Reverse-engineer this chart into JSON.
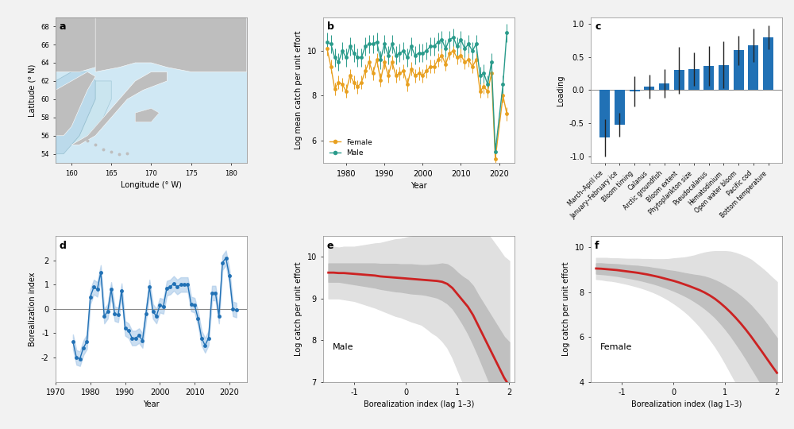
{
  "panel_b": {
    "years_female": [
      1975,
      1976,
      1977,
      1978,
      1979,
      1980,
      1981,
      1982,
      1983,
      1984,
      1985,
      1986,
      1987,
      1988,
      1989,
      1990,
      1991,
      1992,
      1993,
      1994,
      1995,
      1996,
      1997,
      1998,
      1999,
      2000,
      2001,
      2002,
      2003,
      2004,
      2005,
      2006,
      2007,
      2008,
      2009,
      2010,
      2011,
      2012,
      2013,
      2014,
      2015,
      2016,
      2017,
      2018,
      2019,
      2021,
      2022
    ],
    "values_female": [
      10.1,
      9.3,
      8.3,
      8.6,
      8.5,
      8.2,
      8.9,
      8.6,
      8.4,
      8.6,
      9.1,
      9.5,
      9.0,
      9.6,
      8.7,
      9.5,
      8.9,
      9.5,
      8.9,
      9.0,
      9.1,
      8.5,
      9.2,
      8.9,
      9.0,
      8.9,
      9.1,
      9.3,
      9.3,
      9.6,
      9.8,
      9.4,
      9.9,
      10.0,
      9.7,
      9.8,
      9.5,
      9.6,
      9.3,
      9.6,
      8.2,
      8.4,
      8.2,
      9.0,
      5.2,
      8.0,
      7.2
    ],
    "err_female": [
      0.3,
      0.3,
      0.3,
      0.3,
      0.3,
      0.3,
      0.3,
      0.3,
      0.3,
      0.3,
      0.3,
      0.3,
      0.3,
      0.3,
      0.3,
      0.3,
      0.3,
      0.3,
      0.3,
      0.3,
      0.3,
      0.3,
      0.3,
      0.3,
      0.3,
      0.3,
      0.3,
      0.3,
      0.3,
      0.3,
      0.3,
      0.3,
      0.3,
      0.3,
      0.3,
      0.3,
      0.3,
      0.3,
      0.3,
      0.3,
      0.3,
      0.3,
      0.3,
      0.3,
      0.3,
      0.3,
      0.3
    ],
    "years_male": [
      1975,
      1976,
      1977,
      1978,
      1979,
      1980,
      1981,
      1982,
      1983,
      1984,
      1985,
      1986,
      1987,
      1988,
      1989,
      1990,
      1991,
      1992,
      1993,
      1994,
      1995,
      1996,
      1997,
      1998,
      1999,
      2000,
      2001,
      2002,
      2003,
      2004,
      2005,
      2006,
      2007,
      2008,
      2009,
      2010,
      2011,
      2012,
      2013,
      2014,
      2015,
      2016,
      2017,
      2018,
      2019,
      2021,
      2022
    ],
    "values_male": [
      10.4,
      10.3,
      9.7,
      9.5,
      10.0,
      9.7,
      10.2,
      9.9,
      9.7,
      9.7,
      10.2,
      10.3,
      10.3,
      10.4,
      9.6,
      10.3,
      9.8,
      10.3,
      9.8,
      9.9,
      10.0,
      9.7,
      10.2,
      9.8,
      9.9,
      9.9,
      10.0,
      10.2,
      10.2,
      10.4,
      10.5,
      10.1,
      10.5,
      10.6,
      10.2,
      10.5,
      10.1,
      10.3,
      10.0,
      10.3,
      8.9,
      9.0,
      8.5,
      9.5,
      5.5,
      8.5,
      10.8
    ],
    "err_male": [
      0.4,
      0.4,
      0.4,
      0.4,
      0.4,
      0.4,
      0.4,
      0.4,
      0.4,
      0.4,
      0.4,
      0.4,
      0.4,
      0.4,
      0.4,
      0.4,
      0.4,
      0.4,
      0.4,
      0.4,
      0.4,
      0.4,
      0.4,
      0.4,
      0.4,
      0.4,
      0.4,
      0.4,
      0.4,
      0.4,
      0.4,
      0.4,
      0.4,
      0.4,
      0.4,
      0.4,
      0.4,
      0.4,
      0.4,
      0.4,
      0.4,
      0.4,
      0.4,
      0.4,
      0.4,
      0.4,
      0.4
    ],
    "color_female": "#E8A020",
    "color_male": "#2A9B8B",
    "ylabel": "Log mean catch per unit effort",
    "xlabel": "Year",
    "ylim": [
      5.0,
      11.5
    ],
    "yticks": [
      6,
      8,
      10
    ]
  },
  "panel_c": {
    "categories": [
      "March–April ice",
      "January–February ice",
      "Bloom timing",
      "Calanus",
      "Arctic groundfish",
      "Bloom extent",
      "Phytoplankton size",
      "Pseudocalanus",
      "Hematodinium",
      "Open water bloom",
      "Pacific cod",
      "Bottom temperature"
    ],
    "loadings": [
      -0.72,
      -0.52,
      -0.02,
      0.05,
      0.1,
      0.3,
      0.32,
      0.36,
      0.38,
      0.6,
      0.68,
      0.8
    ],
    "errors": [
      0.28,
      0.18,
      0.23,
      0.18,
      0.22,
      0.35,
      0.25,
      0.3,
      0.35,
      0.22,
      0.25,
      0.18
    ],
    "bar_color": "#2171B5",
    "ylabel": "Loading",
    "ylim": [
      -1.1,
      1.1
    ],
    "yticks": [
      -1.0,
      -0.5,
      0.0,
      0.5,
      1.0
    ]
  },
  "panel_d": {
    "years": [
      1975,
      1976,
      1977,
      1978,
      1979,
      1980,
      1981,
      1982,
      1983,
      1984,
      1985,
      1986,
      1987,
      1988,
      1989,
      1990,
      1991,
      1992,
      1993,
      1994,
      1995,
      1996,
      1997,
      1998,
      1999,
      2000,
      2001,
      2002,
      2003,
      2004,
      2005,
      2006,
      2007,
      2008,
      2009,
      2010,
      2011,
      2012,
      2013,
      2014,
      2015,
      2016,
      2017,
      2018,
      2019,
      2020,
      2021,
      2022
    ],
    "values": [
      -1.35,
      -2.0,
      -2.05,
      -1.6,
      -1.35,
      0.5,
      0.9,
      0.8,
      1.5,
      -0.3,
      -0.1,
      0.8,
      -0.2,
      -0.25,
      0.75,
      -0.8,
      -0.9,
      -1.2,
      -1.2,
      -1.1,
      -1.3,
      -0.2,
      0.9,
      -0.1,
      -0.3,
      0.15,
      0.1,
      0.85,
      0.9,
      1.05,
      0.9,
      1.0,
      1.0,
      1.0,
      0.2,
      0.15,
      -0.4,
      -1.2,
      -1.5,
      -1.2,
      0.65,
      0.65,
      -0.3,
      1.9,
      2.1,
      1.35,
      0.0,
      -0.05
    ],
    "shade_low": [
      -1.65,
      -2.3,
      -2.35,
      -1.9,
      -1.65,
      0.2,
      0.6,
      0.5,
      1.2,
      -0.6,
      -0.4,
      0.5,
      -0.5,
      -0.55,
      0.45,
      -1.1,
      -1.2,
      -1.5,
      -1.5,
      -1.4,
      -1.6,
      -0.5,
      0.6,
      -0.4,
      -0.6,
      -0.15,
      -0.2,
      0.55,
      0.6,
      0.75,
      0.6,
      0.7,
      0.7,
      0.7,
      -0.1,
      -0.15,
      -0.7,
      -1.5,
      -1.8,
      -1.5,
      0.35,
      0.35,
      -0.6,
      1.6,
      1.8,
      1.05,
      -0.3,
      -0.35
    ],
    "shade_high": [
      -1.05,
      -1.7,
      -1.75,
      -1.3,
      -1.05,
      0.8,
      1.2,
      1.1,
      1.8,
      0.0,
      0.2,
      1.1,
      0.1,
      0.05,
      1.05,
      -0.5,
      -0.6,
      -0.9,
      -0.9,
      -0.8,
      -1.0,
      0.1,
      1.2,
      0.2,
      0.0,
      0.45,
      0.4,
      1.15,
      1.2,
      1.35,
      1.2,
      1.3,
      1.3,
      1.3,
      0.5,
      0.45,
      -0.1,
      -0.9,
      -1.2,
      -0.9,
      0.95,
      0.95,
      0.0,
      2.2,
      2.4,
      1.65,
      0.3,
      0.25
    ],
    "color": "#2171B5",
    "shade_color": "#A8C8E8",
    "ylabel": "Borealization index",
    "xlabel": "Year",
    "ylim": [
      -3.0,
      3.0
    ],
    "yticks": [
      -2,
      -1,
      0,
      1,
      2
    ]
  },
  "panel_e": {
    "x": [
      -1.5,
      -1.4,
      -1.3,
      -1.2,
      -1.1,
      -1.0,
      -0.9,
      -0.8,
      -0.7,
      -0.6,
      -0.5,
      -0.4,
      -0.3,
      -0.2,
      -0.1,
      0.0,
      0.1,
      0.2,
      0.3,
      0.4,
      0.5,
      0.6,
      0.7,
      0.8,
      0.9,
      1.0,
      1.1,
      1.2,
      1.3,
      1.4,
      1.5,
      1.6,
      1.7,
      1.8,
      1.9,
      2.0
    ],
    "y_fit": [
      9.62,
      9.62,
      9.61,
      9.61,
      9.6,
      9.59,
      9.58,
      9.57,
      9.56,
      9.55,
      9.53,
      9.52,
      9.51,
      9.5,
      9.49,
      9.48,
      9.47,
      9.46,
      9.45,
      9.44,
      9.43,
      9.42,
      9.4,
      9.35,
      9.25,
      9.1,
      8.95,
      8.8,
      8.6,
      8.35,
      8.1,
      7.85,
      7.6,
      7.35,
      7.1,
      6.9
    ],
    "y_low1": [
      9.4,
      9.4,
      9.4,
      9.38,
      9.36,
      9.34,
      9.32,
      9.3,
      9.28,
      9.26,
      9.23,
      9.21,
      9.19,
      9.17,
      9.16,
      9.14,
      9.12,
      9.11,
      9.1,
      9.08,
      9.05,
      9.02,
      8.96,
      8.88,
      8.76,
      8.58,
      8.38,
      8.16,
      7.9,
      7.62,
      7.32,
      7.02,
      6.72,
      6.42,
      6.12,
      5.85
    ],
    "y_high1": [
      9.84,
      9.84,
      9.84,
      9.84,
      9.84,
      9.84,
      9.84,
      9.84,
      9.84,
      9.84,
      9.83,
      9.83,
      9.83,
      9.83,
      9.82,
      9.82,
      9.82,
      9.81,
      9.8,
      9.8,
      9.81,
      9.82,
      9.84,
      9.82,
      9.74,
      9.62,
      9.52,
      9.44,
      9.3,
      9.08,
      8.88,
      8.68,
      8.48,
      8.28,
      8.08,
      7.95
    ],
    "y_low2": [
      9.0,
      9.0,
      9.0,
      8.98,
      8.96,
      8.94,
      8.9,
      8.86,
      8.82,
      8.78,
      8.73,
      8.68,
      8.63,
      8.58,
      8.55,
      8.5,
      8.45,
      8.41,
      8.37,
      8.28,
      8.18,
      8.1,
      7.98,
      7.82,
      7.58,
      7.28,
      6.98,
      6.65,
      6.3,
      5.94,
      5.55,
      5.18,
      4.85,
      4.52,
      4.2,
      3.9
    ],
    "y_high2": [
      10.24,
      10.24,
      10.22,
      10.24,
      10.24,
      10.24,
      10.26,
      10.28,
      10.3,
      10.32,
      10.33,
      10.36,
      10.39,
      10.42,
      10.43,
      10.46,
      10.49,
      10.51,
      10.53,
      10.6,
      10.68,
      10.74,
      10.82,
      10.88,
      10.92,
      10.92,
      10.92,
      10.95,
      10.9,
      10.76,
      10.65,
      10.52,
      10.35,
      10.18,
      10.0,
      9.9
    ],
    "line_color": "#CC2222",
    "shade1_color": "#C0C0C0",
    "shade2_color": "#E0E0E0",
    "label": "Male",
    "ylabel": "Log catch per unit effort",
    "xlabel": "Borealization index (lag 1–3)",
    "ylim": [
      7.0,
      10.5
    ],
    "yticks": [
      7,
      8,
      9,
      10
    ]
  },
  "panel_f": {
    "x": [
      -1.5,
      -1.4,
      -1.3,
      -1.2,
      -1.1,
      -1.0,
      -0.9,
      -0.8,
      -0.7,
      -0.6,
      -0.5,
      -0.4,
      -0.3,
      -0.2,
      -0.1,
      0.0,
      0.1,
      0.2,
      0.3,
      0.4,
      0.5,
      0.6,
      0.7,
      0.8,
      0.9,
      1.0,
      1.1,
      1.2,
      1.3,
      1.4,
      1.5,
      1.6,
      1.7,
      1.8,
      1.9,
      2.0
    ],
    "y_fit": [
      9.05,
      9.04,
      9.02,
      9.0,
      8.98,
      8.95,
      8.92,
      8.89,
      8.86,
      8.82,
      8.78,
      8.73,
      8.68,
      8.62,
      8.56,
      8.5,
      8.43,
      8.35,
      8.27,
      8.18,
      8.09,
      7.98,
      7.85,
      7.7,
      7.52,
      7.32,
      7.1,
      6.86,
      6.6,
      6.32,
      6.02,
      5.7,
      5.38,
      5.05,
      4.72,
      4.4
    ],
    "y_low1": [
      8.82,
      8.8,
      8.78,
      8.75,
      8.72,
      8.68,
      8.64,
      8.6,
      8.55,
      8.5,
      8.44,
      8.38,
      8.31,
      8.23,
      8.15,
      8.06,
      7.96,
      7.85,
      7.73,
      7.59,
      7.44,
      7.27,
      7.08,
      6.87,
      6.62,
      6.35,
      6.05,
      5.72,
      5.38,
      5.02,
      4.64,
      4.26,
      3.88,
      3.52,
      3.18,
      2.85
    ],
    "y_high1": [
      9.28,
      9.28,
      9.26,
      9.25,
      9.24,
      9.22,
      9.2,
      9.18,
      9.17,
      9.14,
      9.12,
      9.08,
      9.05,
      9.01,
      8.97,
      8.94,
      8.9,
      8.85,
      8.81,
      8.77,
      8.74,
      8.69,
      8.62,
      8.53,
      8.42,
      8.29,
      8.15,
      8.0,
      7.82,
      7.62,
      7.4,
      7.14,
      6.88,
      6.58,
      6.26,
      5.95
    ],
    "y_low2": [
      8.58,
      8.56,
      8.52,
      8.5,
      8.46,
      8.41,
      8.36,
      8.3,
      8.24,
      8.17,
      8.09,
      8.0,
      7.9,
      7.78,
      7.65,
      7.5,
      7.34,
      7.16,
      6.96,
      6.73,
      6.48,
      6.2,
      5.9,
      5.58,
      5.22,
      4.82,
      4.4,
      3.98,
      3.54,
      3.08,
      2.6,
      2.14,
      1.68,
      1.22,
      0.78,
      0.35
    ],
    "y_high2": [
      9.52,
      9.52,
      9.52,
      9.5,
      9.5,
      9.49,
      9.48,
      9.48,
      9.48,
      9.47,
      9.47,
      9.46,
      9.46,
      9.46,
      9.47,
      9.5,
      9.52,
      9.54,
      9.58,
      9.63,
      9.7,
      9.76,
      9.8,
      9.82,
      9.82,
      9.82,
      9.8,
      9.74,
      9.66,
      9.56,
      9.44,
      9.26,
      9.08,
      8.88,
      8.66,
      8.45
    ],
    "line_color": "#CC2222",
    "shade1_color": "#C0C0C0",
    "shade2_color": "#E0E0E0",
    "label": "Female",
    "ylabel": "Log catch per unit effort",
    "xlabel": "Borealization index (lag 1–3)",
    "ylim": [
      4.0,
      10.5
    ],
    "yticks": [
      4,
      6,
      8,
      10
    ]
  },
  "map": {
    "xlim": [
      158,
      182
    ],
    "ylim": [
      53,
      69
    ],
    "xticks": [
      180,
      175,
      170,
      165,
      160
    ],
    "yticks": [
      54,
      56,
      58,
      60,
      62,
      64,
      66,
      68
    ],
    "xlabel": "Longitude (° W)",
    "ylabel": "Latitude (° N)",
    "ocean_color": "#D0E8F4",
    "land_color": "#BEBEBE",
    "survey_color": "#B8D8EA",
    "survey_color2": "#C8E4EE"
  },
  "bg_color": "#F2F2F2",
  "panel_bg": "#FFFFFF"
}
